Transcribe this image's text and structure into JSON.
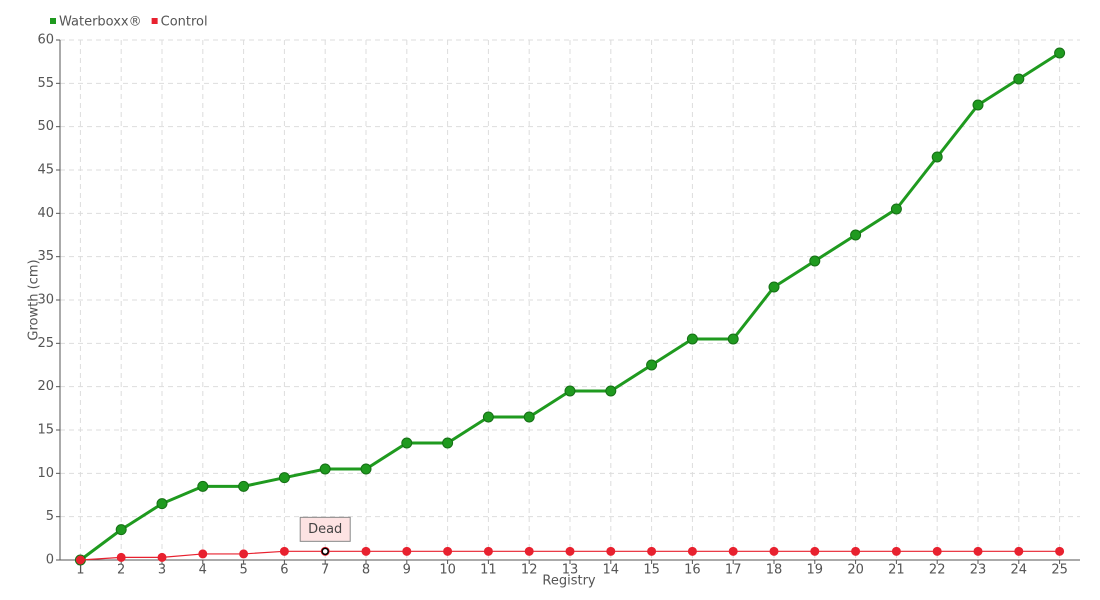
{
  "chart_data": {
    "type": "line",
    "x_label": "Registry",
    "y_label": "Growth (cm)",
    "categories": [
      "1",
      "2",
      "3",
      "4",
      "5",
      "6",
      "7",
      "8",
      "9",
      "10",
      "11",
      "12",
      "13",
      "14",
      "15",
      "16",
      "17",
      "18",
      "19",
      "20",
      "21",
      "22",
      "23",
      "24",
      "25"
    ],
    "series": [
      {
        "name": "Waterboxx®",
        "color": "#1f9a1f",
        "values": [
          0,
          3.5,
          6.5,
          8.5,
          8.5,
          9.5,
          10.5,
          10.5,
          13.5,
          13.5,
          16.5,
          16.5,
          19.5,
          19.5,
          22.5,
          25.5,
          25.5,
          31.5,
          34.5,
          37.5,
          40.5,
          46.5,
          52.5,
          55.5,
          58.5
        ]
      },
      {
        "name": "Control",
        "color": "#e8212f",
        "values": [
          0,
          0.3,
          0.3,
          0.7,
          0.7,
          1,
          1,
          1,
          1,
          1,
          1,
          1,
          1,
          1,
          1,
          1,
          1,
          1,
          1,
          1,
          1,
          1,
          1,
          1,
          1
        ]
      }
    ],
    "annotations": [
      {
        "text": "Dead",
        "x": "7"
      }
    ],
    "ylim": [
      0,
      60
    ],
    "yticks": [
      0,
      5,
      10,
      15,
      20,
      25,
      30,
      35,
      40,
      45,
      50,
      55,
      60
    ],
    "grid": true,
    "legend": "top-left"
  }
}
